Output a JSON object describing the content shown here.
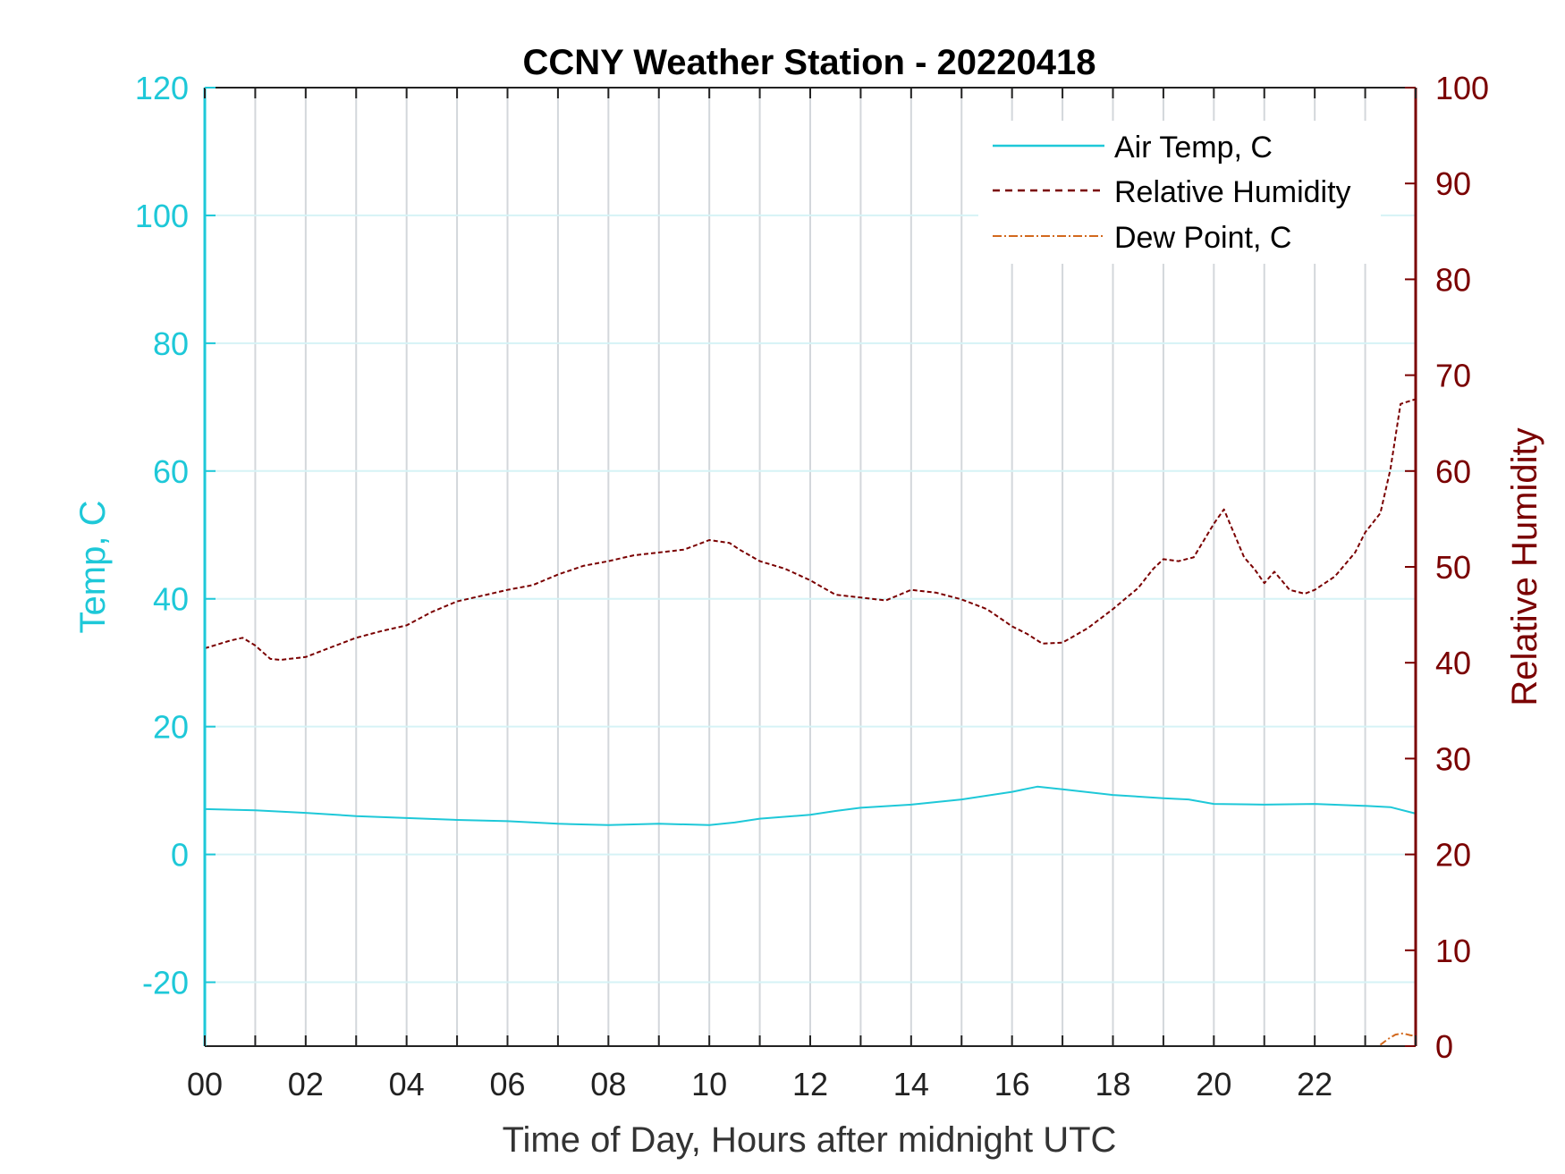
{
  "chart_data": {
    "type": "line",
    "title": "CCNY Weather Station - 20220418",
    "xlabel": "Time of Day, Hours after midnight UTC",
    "ylabel_left": "Temp, C",
    "ylabel_right": "Relative Humidity",
    "xlim": [
      0,
      24
    ],
    "ylim_left": [
      -30,
      120
    ],
    "ylim_right": [
      0,
      100
    ],
    "x_tick_labels": [
      "00",
      "02",
      "04",
      "06",
      "08",
      "10",
      "12",
      "14",
      "16",
      "18",
      "20",
      "22"
    ],
    "x_ticks": [
      0,
      2,
      4,
      6,
      8,
      10,
      12,
      14,
      16,
      18,
      20,
      22
    ],
    "y_ticks_left": [
      -20,
      0,
      20,
      40,
      60,
      80,
      100,
      120
    ],
    "y_ticks_right": [
      0,
      10,
      20,
      30,
      40,
      50,
      60,
      70,
      80,
      90,
      100
    ],
    "grid": true,
    "legend_position": "top-right",
    "colors": {
      "air_temp": "#1ec8d8",
      "relative_humidity": "#7a0000",
      "dew_point": "#d2691e",
      "left_axis": "#1ec8d8",
      "right_axis": "#7a0000"
    },
    "series": [
      {
        "name": "Air Temp, C",
        "axis": "left",
        "style": "solid",
        "x": [
          0,
          1,
          2,
          3,
          4,
          5,
          6,
          7,
          8,
          9,
          10,
          10.5,
          11,
          12,
          12.5,
          13,
          14,
          15,
          16,
          16.5,
          17,
          18,
          19,
          19.5,
          20,
          21,
          22,
          23,
          23.5,
          24
        ],
        "y": [
          7.1,
          6.9,
          6.5,
          6.0,
          5.7,
          5.4,
          5.2,
          4.8,
          4.6,
          4.8,
          4.6,
          5.0,
          5.6,
          6.2,
          6.8,
          7.3,
          7.8,
          8.6,
          9.8,
          10.6,
          10.2,
          9.3,
          8.8,
          8.6,
          7.9,
          7.8,
          7.9,
          7.6,
          7.4,
          6.4
        ]
      },
      {
        "name": "Relative Humidity",
        "axis": "right",
        "style": "dashed",
        "x": [
          0,
          0.5,
          0.75,
          1,
          1.3,
          1.5,
          2,
          2.5,
          3,
          3.5,
          4,
          4.5,
          5,
          5.5,
          6,
          6.5,
          7,
          7.5,
          8,
          8.5,
          9,
          9.5,
          10,
          10.4,
          10.6,
          11,
          11.5,
          12,
          12.5,
          13,
          13.5,
          14,
          14.5,
          15,
          15.5,
          16,
          16.3,
          16.6,
          17,
          17.5,
          18,
          18.5,
          18.8,
          19,
          19.3,
          19.6,
          20,
          20.2,
          20.4,
          20.6,
          20.8,
          21,
          21.2,
          21.5,
          21.8,
          22,
          22.4,
          22.8,
          23,
          23.3,
          23.5,
          23.7,
          24
        ],
        "y": [
          41.5,
          42.3,
          42.6,
          41.8,
          40.4,
          40.3,
          40.6,
          41.6,
          42.6,
          43.3,
          43.9,
          45.3,
          46.4,
          47.0,
          47.6,
          48.1,
          49.2,
          50.1,
          50.6,
          51.2,
          51.5,
          51.8,
          52.8,
          52.5,
          51.8,
          50.6,
          49.8,
          48.6,
          47.1,
          46.8,
          46.5,
          47.6,
          47.3,
          46.6,
          45.6,
          43.8,
          43.0,
          42.0,
          42.1,
          43.6,
          45.6,
          47.8,
          49.8,
          50.8,
          50.6,
          51.0,
          54.5,
          56.0,
          53.5,
          51.0,
          49.8,
          48.3,
          49.5,
          47.6,
          47.2,
          47.6,
          49.0,
          51.5,
          53.6,
          55.6,
          60.2,
          67.0,
          67.5
        ]
      },
      {
        "name": "Dew Point, C",
        "axis": "left",
        "style": "dashdot",
        "x": [
          23.3,
          23.45,
          23.6,
          23.75,
          23.9,
          24
        ],
        "y": [
          -29.8,
          -28.9,
          -28.2,
          -28.0,
          -28.3,
          -28.4
        ]
      }
    ]
  }
}
